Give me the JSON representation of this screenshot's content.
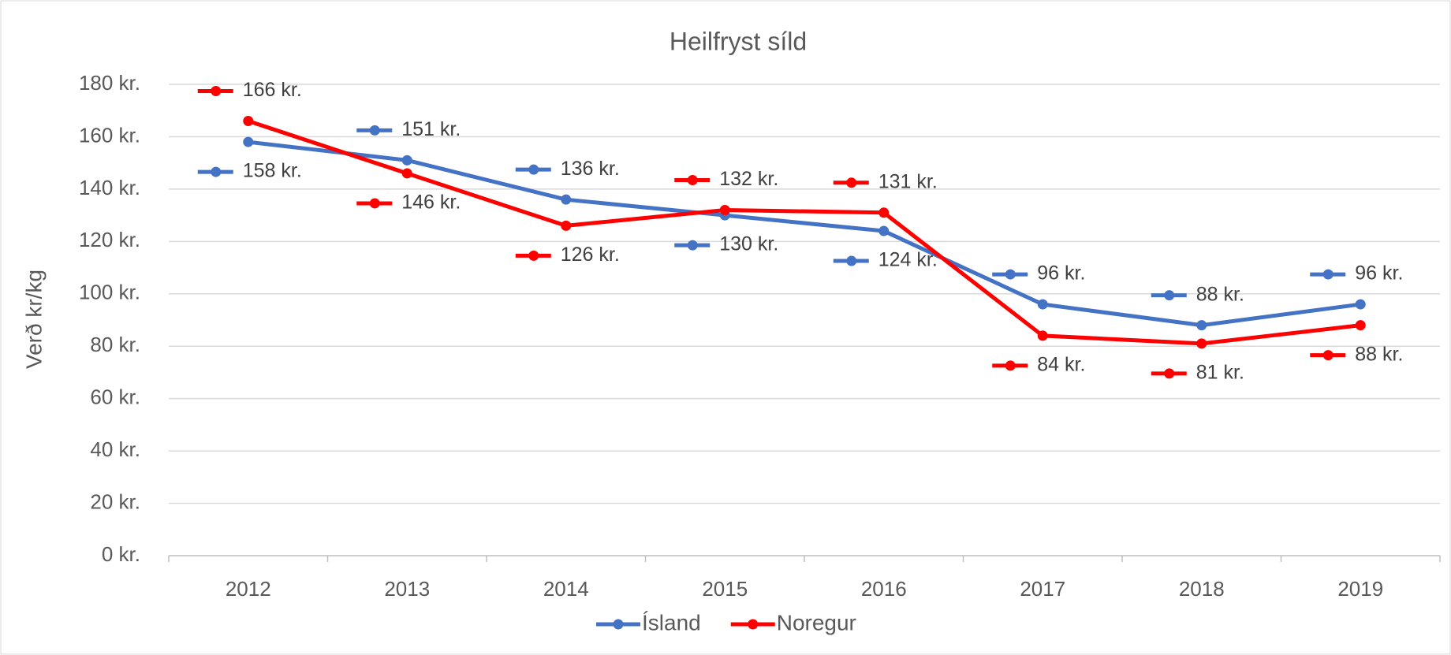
{
  "chart_data": {
    "type": "line",
    "title": "Heilfryst síld",
    "y_label": "Verð kr/kg",
    "categories": [
      "2012",
      "2013",
      "2014",
      "2015",
      "2016",
      "2017",
      "2018",
      "2019"
    ],
    "series": [
      {
        "name": "Ísland",
        "color": "#4472c4",
        "values": [
          158,
          151,
          136,
          130,
          124,
          96,
          88,
          96
        ],
        "value_labels": [
          "158 kr.",
          "151 kr.",
          "136 kr.",
          "130 kr.",
          "124 kr.",
          "96 kr.",
          "88 kr.",
          "96 kr."
        ]
      },
      {
        "name": "Noregur",
        "color": "#ff0000",
        "values": [
          166,
          146,
          126,
          132,
          131,
          84,
          81,
          88
        ],
        "value_labels": [
          "166 kr.",
          "146 kr.",
          "126 kr.",
          "132 kr.",
          "131 kr.",
          "84 kr.",
          "81 kr.",
          "88 kr."
        ]
      }
    ],
    "ylim": [
      0,
      180
    ],
    "yticks": [
      {
        "value": 0,
        "label": "0 kr."
      },
      {
        "value": 20,
        "label": "20 kr."
      },
      {
        "value": 40,
        "label": "40 kr."
      },
      {
        "value": 60,
        "label": "60 kr."
      },
      {
        "value": 80,
        "label": "80 kr."
      },
      {
        "value": 100,
        "label": "100 kr."
      },
      {
        "value": 120,
        "label": "120 kr."
      },
      {
        "value": 140,
        "label": "140 kr."
      },
      {
        "value": 160,
        "label": "160 kr."
      },
      {
        "value": 180,
        "label": "180 kr."
      }
    ],
    "grid": true,
    "legend": "bottom"
  }
}
